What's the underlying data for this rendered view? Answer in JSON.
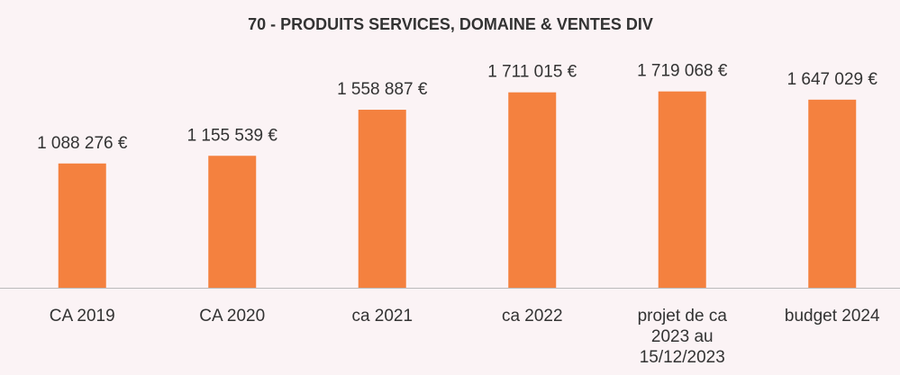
{
  "chart_data": {
    "type": "bar",
    "title": "70 - PRODUITS SERVICES,  DOMAINE & VENTES DIV",
    "categories": [
      "CA 2019",
      "CA 2020",
      "ca 2021",
      "ca 2022",
      "projet de ca 2023 au 15/12/2023",
      "budget 2024"
    ],
    "values": [
      1088276,
      1155539,
      1558887,
      1711015,
      1719068,
      1647029
    ],
    "value_labels": [
      "1 088 276 €",
      "1 155 539 €",
      "1 558 887 €",
      "1 711 015 €",
      "1 719 068 €",
      "1 647 029 €"
    ],
    "color": "#f4813f",
    "ylim": [
      0,
      2000000
    ]
  }
}
